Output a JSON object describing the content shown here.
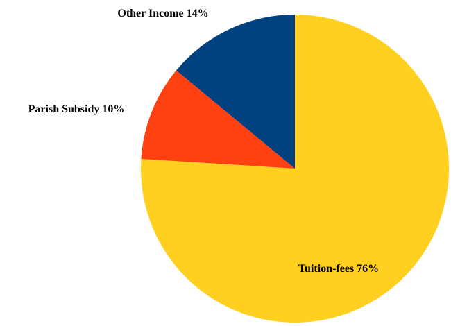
{
  "chart_data": {
    "type": "pie",
    "categories": [
      "Tuition-fees",
      "Parish Subsidy",
      "Other Income"
    ],
    "values": [
      76,
      10,
      14
    ],
    "value_labels": [
      "76%",
      "10%",
      "14%"
    ],
    "colors": [
      "#FFD020",
      "#FF4010",
      "#00427F"
    ],
    "start_angle": 0,
    "direction": "clockwise"
  }
}
